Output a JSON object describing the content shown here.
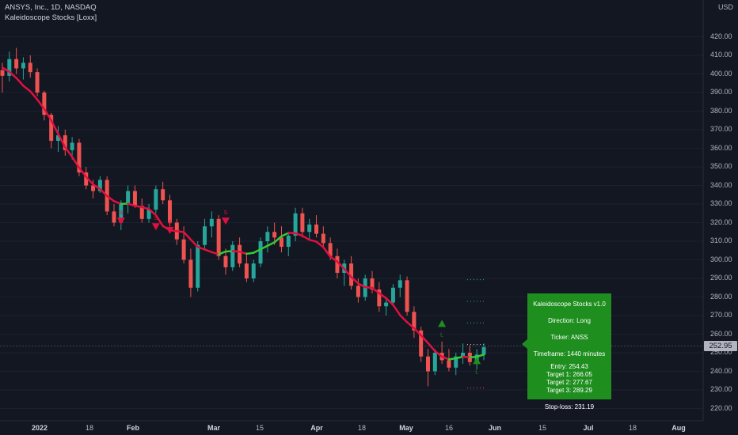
{
  "header": {
    "symbol_line": "ANSYS, Inc., 1D, NASDAQ",
    "indicator_line": "Kaleidoscope Stocks [Loxx]",
    "currency": "USD"
  },
  "price_axis": {
    "ticks": [
      "420.00",
      "410.00",
      "400.00",
      "390.00",
      "380.00",
      "370.00",
      "360.00",
      "350.00",
      "340.00",
      "330.00",
      "320.00",
      "310.00",
      "300.00",
      "290.00",
      "280.00",
      "270.00",
      "260.00",
      "250.00",
      "240.00",
      "230.00",
      "220.00"
    ],
    "last_price": "252.95"
  },
  "time_axis": {
    "labels": [
      "2022",
      "18",
      "Feb",
      "Mar",
      "15",
      "Apr",
      "18",
      "May",
      "16",
      "Jun",
      "15",
      "Jul",
      "18",
      "Aug"
    ]
  },
  "info_box": {
    "title": "Kaleidoscope Stocks v1.0",
    "direction": "Direction: Long",
    "ticker": "Ticker: ANSS",
    "timeframe": "Timeframe: 1440 minutes",
    "entry": "Entry: 254.43",
    "target1": "Target 1: 266.05",
    "target2": "Target 2: 277.67",
    "target3": "Target 3: 289.29",
    "stoploss": "Stop-loss: 231.19"
  },
  "colors": {
    "background": "#131722",
    "up": "#26a69a",
    "down": "#ef5350",
    "ma_up": "#33cc33",
    "ma_down": "#e0103f",
    "signal_long": "#1e8e1e",
    "signal_short": "#e0103f"
  },
  "chart_data": {
    "type": "candlestick",
    "title": "ANSYS, Inc., 1D, NASDAQ",
    "ylim": [
      215,
      427
    ],
    "candles": [
      [
        402,
        406,
        390,
        399
      ],
      [
        399,
        412,
        396,
        408
      ],
      [
        408,
        414,
        400,
        403
      ],
      [
        403,
        409,
        397,
        406
      ],
      [
        406,
        410,
        398,
        401
      ],
      [
        401,
        403,
        388,
        390
      ],
      [
        390,
        391,
        375,
        378
      ],
      [
        378,
        379,
        360,
        364
      ],
      [
        364,
        372,
        358,
        367
      ],
      [
        367,
        370,
        356,
        359
      ],
      [
        359,
        366,
        354,
        363
      ],
      [
        363,
        365,
        345,
        347
      ],
      [
        347,
        350,
        338,
        340
      ],
      [
        340,
        343,
        333,
        337
      ],
      [
        337,
        345,
        336,
        343
      ],
      [
        343,
        345,
        324,
        326
      ],
      [
        326,
        330,
        318,
        320
      ],
      [
        320,
        332,
        316,
        330
      ],
      [
        330,
        340,
        325,
        337
      ],
      [
        337,
        340,
        328,
        329
      ],
      [
        329,
        333,
        320,
        322
      ],
      [
        322,
        330,
        320,
        327
      ],
      [
        327,
        340,
        325,
        338
      ],
      [
        338,
        342,
        330,
        332
      ],
      [
        332,
        335,
        318,
        320
      ],
      [
        320,
        322,
        308,
        311
      ],
      [
        311,
        318,
        298,
        300
      ],
      [
        300,
        306,
        280,
        285
      ],
      [
        285,
        310,
        283,
        308
      ],
      [
        308,
        322,
        305,
        318
      ],
      [
        318,
        326,
        312,
        322
      ],
      [
        322,
        324,
        300,
        302
      ],
      [
        302,
        306,
        292,
        296
      ],
      [
        296,
        310,
        294,
        308
      ],
      [
        308,
        312,
        296,
        298
      ],
      [
        298,
        304,
        288,
        290
      ],
      [
        290,
        300,
        288,
        298
      ],
      [
        298,
        312,
        296,
        310
      ],
      [
        310,
        318,
        304,
        315
      ],
      [
        315,
        320,
        308,
        312
      ],
      [
        312,
        318,
        304,
        307
      ],
      [
        307,
        315,
        302,
        313
      ],
      [
        313,
        328,
        310,
        325
      ],
      [
        325,
        328,
        312,
        315
      ],
      [
        315,
        322,
        311,
        319
      ],
      [
        319,
        324,
        312,
        314
      ],
      [
        314,
        318,
        306,
        309
      ],
      [
        309,
        312,
        300,
        302
      ],
      [
        302,
        306,
        290,
        293
      ],
      [
        293,
        300,
        286,
        298
      ],
      [
        298,
        302,
        284,
        286
      ],
      [
        286,
        290,
        277,
        280
      ],
      [
        280,
        292,
        278,
        290
      ],
      [
        290,
        294,
        282,
        284
      ],
      [
        284,
        288,
        272,
        275
      ],
      [
        275,
        280,
        270,
        277
      ],
      [
        277,
        287,
        275,
        285
      ],
      [
        285,
        292,
        280,
        289
      ],
      [
        289,
        291,
        270,
        272
      ],
      [
        272,
        275,
        258,
        262
      ],
      [
        262,
        264,
        245,
        248
      ],
      [
        248,
        252,
        232,
        240
      ],
      [
        240,
        252,
        238,
        250
      ],
      [
        250,
        256,
        244,
        246
      ],
      [
        246,
        252,
        240,
        242
      ],
      [
        242,
        250,
        238,
        248
      ],
      [
        248,
        255,
        244,
        250
      ],
      [
        250,
        254,
        243,
        245
      ],
      [
        245,
        252,
        241,
        249
      ],
      [
        249,
        255,
        246,
        253
      ]
    ],
    "signals": [
      {
        "type": "S",
        "price": 321
      },
      {
        "type": "S",
        "price": 318
      },
      {
        "type": "S",
        "price": 316
      },
      {
        "type": "S",
        "price": 321
      },
      {
        "type": "L",
        "price": 266
      },
      {
        "type": "L",
        "price": 246
      }
    ],
    "target_levels": [
      266.05,
      277.67,
      289.29
    ],
    "entry": 254.43,
    "stop_loss": 231.19,
    "last_price": 252.95
  }
}
